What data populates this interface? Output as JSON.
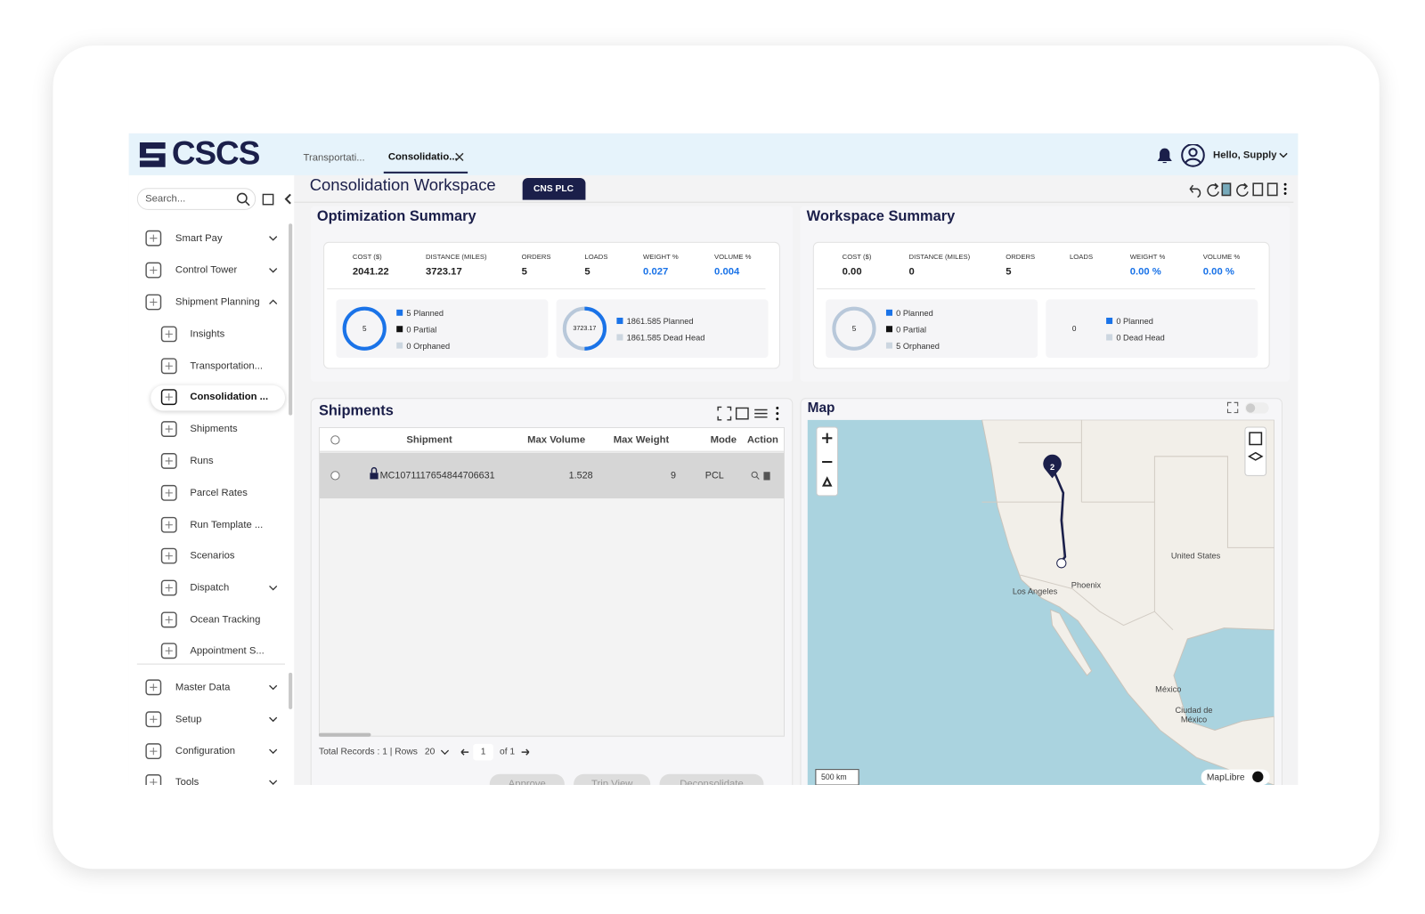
{
  "header": {
    "logo": "CSCS",
    "tabs": [
      "Transportati...",
      "Consolidatio..."
    ],
    "greeting": "Hello, Supply"
  },
  "sidebar": {
    "search_placeholder": "Search...",
    "items": [
      "Smart Pay",
      "Control Tower",
      "Shipment Planning",
      "Insights",
      "Transportation...",
      "Consolidation ...",
      "Shipments",
      "Runs",
      "Parcel Rates",
      "Run Template ...",
      "Scenarios",
      "Dispatch",
      "Ocean Tracking",
      "Appointment S...",
      "Master Data",
      "Setup",
      "Configuration",
      "Tools"
    ]
  },
  "workspace": {
    "title": "Consolidation Workspace",
    "badge": "CNS PLC"
  },
  "optimization_summary": {
    "title": "Optimization Summary",
    "metrics": [
      {
        "label": "COST ($)",
        "value": "2041.22"
      },
      {
        "label": "DISTANCE (MILES)",
        "value": "3723.17"
      },
      {
        "label": "ORDERS",
        "value": "5"
      },
      {
        "label": "LOADS",
        "value": "5"
      },
      {
        "label": "WEIGHT %",
        "value": "0.027"
      },
      {
        "label": "VOLUME %",
        "value": "0.004"
      }
    ],
    "orders_donut": {
      "center": "5",
      "legend": [
        "5 Planned",
        "0 Partial",
        "0 Orphaned"
      ]
    },
    "distance_donut": {
      "center": "3723.17",
      "legend": [
        "1861.585 Planned",
        "1861.585 Dead Head"
      ]
    }
  },
  "workspace_summary": {
    "title": "Workspace Summary",
    "metrics": [
      {
        "label": "COST ($)",
        "value": "0.00"
      },
      {
        "label": "DISTANCE (MILES)",
        "value": "0"
      },
      {
        "label": "ORDERS",
        "value": "5"
      },
      {
        "label": "LOADS"
      },
      {
        "label": "WEIGHT %",
        "value": "0.00 %"
      },
      {
        "label": "VOLUME %",
        "value": "0.00 %"
      }
    ],
    "orders_donut": {
      "center": "5",
      "legend": [
        "0 Planned",
        "0 Partial",
        "5 Orphaned"
      ]
    },
    "distance_donut": {
      "center": "0",
      "legend": [
        "0 Planned",
        "0 Dead Head"
      ]
    }
  },
  "shipments": {
    "title": "Shipments",
    "columns": [
      "Shipment",
      "Max Volume",
      "Max Weight",
      "Mode",
      "Action"
    ],
    "rows": [
      [
        "MC1071117654844706631",
        "1.528",
        "9",
        "PCL"
      ]
    ],
    "footer": {
      "total": "Total Records : 1 | Rows",
      "rows_per_page": "20",
      "page": "1",
      "page_count": "of 1"
    },
    "buttons": [
      "Approve",
      "Trip View",
      "Deconsolidate"
    ]
  },
  "map": {
    "title": "Map",
    "labels": [
      "United States",
      "Phoenix",
      "Los Angeles",
      "México",
      "Ciudad de México"
    ],
    "marker": "2",
    "scale": "500 km",
    "attribution": "MapLibre"
  }
}
